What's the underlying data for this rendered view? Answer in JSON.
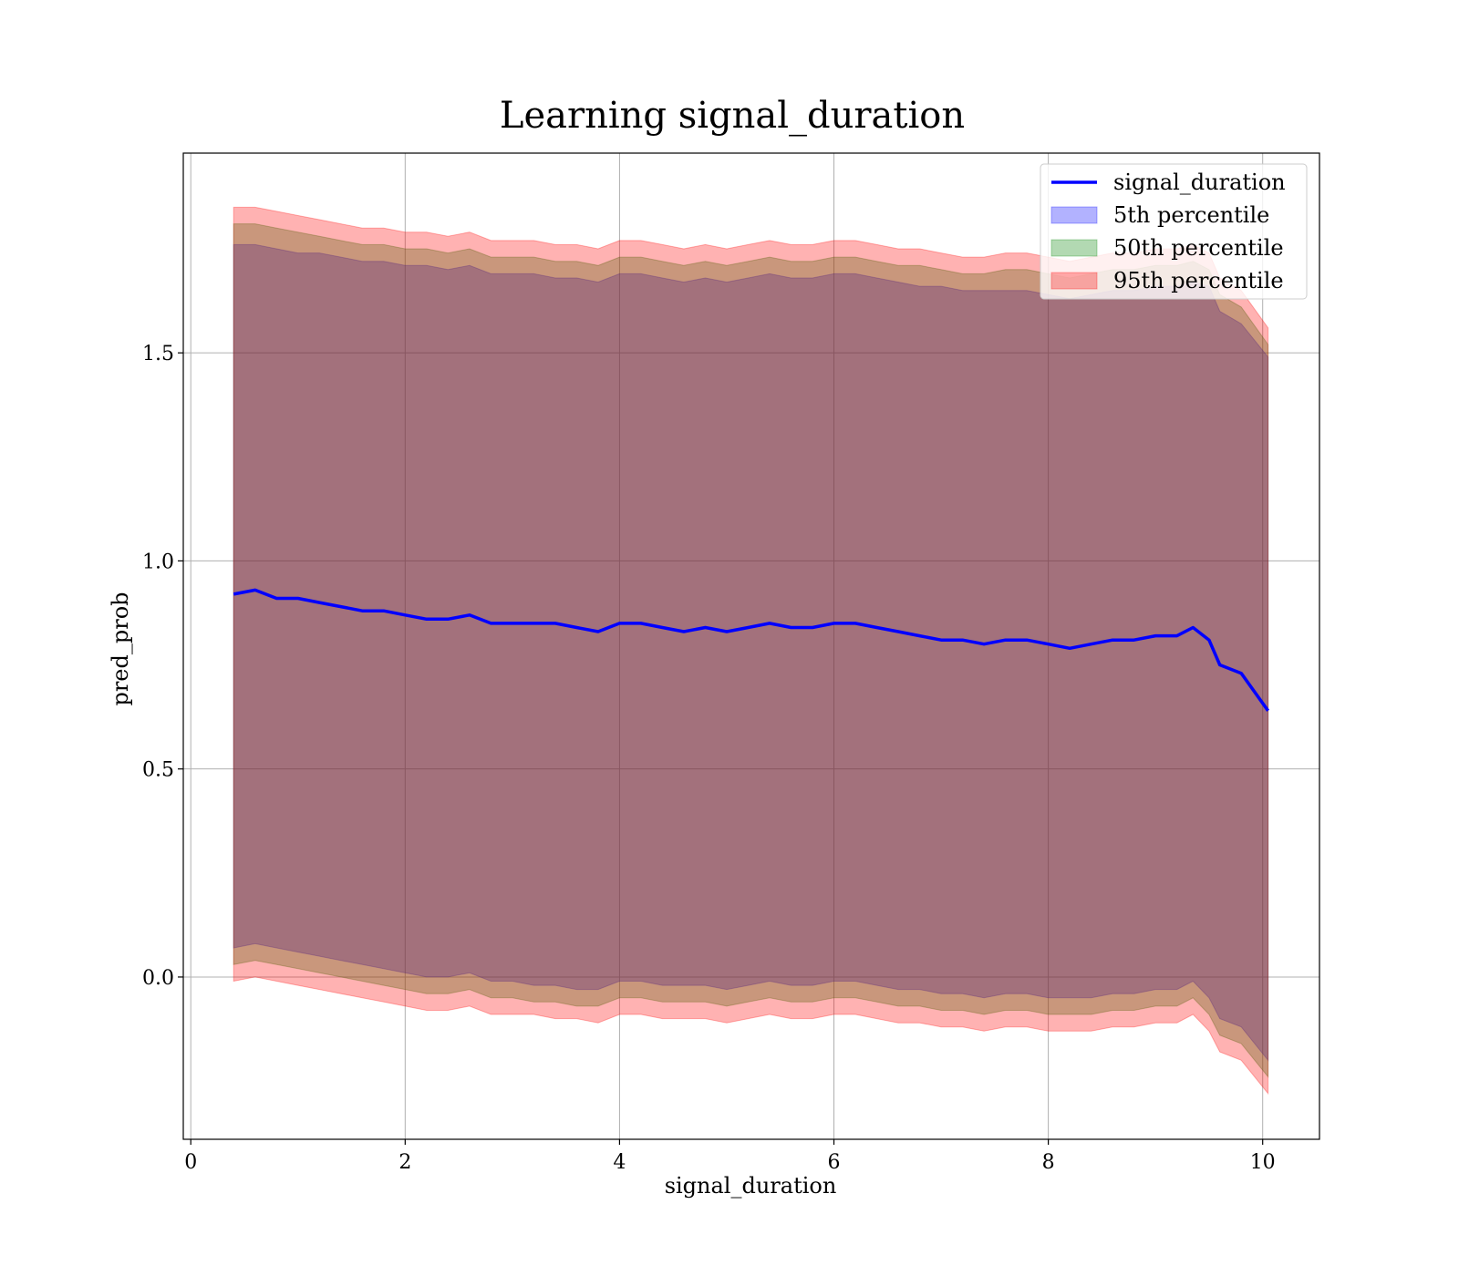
{
  "chart_data": {
    "type": "line",
    "title": "Learning signal_duration",
    "xlabel": "signal_duration",
    "ylabel": "pred_prob",
    "xlim": [
      -0.07,
      10.53
    ],
    "ylim": [
      -0.39,
      1.98
    ],
    "xticks": [
      0,
      2,
      4,
      6,
      8,
      10
    ],
    "xtick_labels": [
      "0",
      "2",
      "4",
      "6",
      "8",
      "10"
    ],
    "yticks": [
      0.0,
      0.5,
      1.0,
      1.5
    ],
    "ytick_labels": [
      "0.0",
      "0.5",
      "1.0",
      "1.5"
    ],
    "grid": true,
    "legend_position": "top-right",
    "x": [
      0.4,
      0.6,
      0.8,
      1.0,
      1.2,
      1.4,
      1.6,
      1.8,
      2.0,
      2.2,
      2.4,
      2.6,
      2.8,
      3.0,
      3.2,
      3.4,
      3.6,
      3.8,
      4.0,
      4.2,
      4.4,
      4.6,
      4.8,
      5.0,
      5.2,
      5.4,
      5.6,
      5.8,
      6.0,
      6.2,
      6.4,
      6.6,
      6.8,
      7.0,
      7.2,
      7.4,
      7.6,
      7.8,
      8.0,
      8.2,
      8.4,
      8.6,
      8.8,
      9.0,
      9.2,
      9.35,
      9.5,
      9.6,
      9.8,
      10.05
    ],
    "series": [
      {
        "name": "signal_duration",
        "kind": "line",
        "color": "#0000ff",
        "values": [
          0.92,
          0.93,
          0.91,
          0.91,
          0.9,
          0.89,
          0.88,
          0.88,
          0.87,
          0.86,
          0.86,
          0.87,
          0.85,
          0.85,
          0.85,
          0.85,
          0.84,
          0.83,
          0.85,
          0.85,
          0.84,
          0.83,
          0.84,
          0.83,
          0.84,
          0.85,
          0.84,
          0.84,
          0.85,
          0.85,
          0.84,
          0.83,
          0.82,
          0.81,
          0.81,
          0.8,
          0.81,
          0.81,
          0.8,
          0.79,
          0.8,
          0.81,
          0.81,
          0.82,
          0.82,
          0.84,
          0.81,
          0.75,
          0.73,
          0.64
        ]
      },
      {
        "name": "5th percentile",
        "kind": "band",
        "color": "#0000ff",
        "lower": [
          0.07,
          0.08,
          0.07,
          0.06,
          0.05,
          0.04,
          0.03,
          0.02,
          0.01,
          0.0,
          0.0,
          0.01,
          -0.01,
          -0.01,
          -0.02,
          -0.02,
          -0.03,
          -0.03,
          -0.01,
          -0.01,
          -0.02,
          -0.02,
          -0.02,
          -0.03,
          -0.02,
          -0.01,
          -0.02,
          -0.02,
          -0.01,
          -0.01,
          -0.02,
          -0.03,
          -0.03,
          -0.04,
          -0.04,
          -0.05,
          -0.04,
          -0.04,
          -0.05,
          -0.05,
          -0.05,
          -0.04,
          -0.04,
          -0.03,
          -0.03,
          -0.01,
          -0.05,
          -0.1,
          -0.12,
          -0.2
        ],
        "upper": [
          1.76,
          1.76,
          1.75,
          1.74,
          1.74,
          1.73,
          1.72,
          1.72,
          1.71,
          1.71,
          1.7,
          1.71,
          1.69,
          1.69,
          1.69,
          1.68,
          1.68,
          1.67,
          1.69,
          1.69,
          1.68,
          1.67,
          1.68,
          1.67,
          1.68,
          1.69,
          1.68,
          1.68,
          1.69,
          1.69,
          1.68,
          1.67,
          1.66,
          1.66,
          1.65,
          1.65,
          1.65,
          1.65,
          1.64,
          1.63,
          1.64,
          1.65,
          1.65,
          1.66,
          1.66,
          1.67,
          1.66,
          1.6,
          1.57,
          1.49
        ]
      },
      {
        "name": "50th percentile",
        "kind": "band",
        "color": "#008000",
        "lower": [
          0.03,
          0.04,
          0.03,
          0.02,
          0.01,
          0.0,
          -0.01,
          -0.02,
          -0.03,
          -0.04,
          -0.04,
          -0.03,
          -0.05,
          -0.05,
          -0.06,
          -0.06,
          -0.07,
          -0.07,
          -0.05,
          -0.05,
          -0.06,
          -0.06,
          -0.06,
          -0.07,
          -0.06,
          -0.05,
          -0.06,
          -0.06,
          -0.05,
          -0.05,
          -0.06,
          -0.07,
          -0.07,
          -0.08,
          -0.08,
          -0.09,
          -0.08,
          -0.08,
          -0.09,
          -0.09,
          -0.09,
          -0.08,
          -0.08,
          -0.07,
          -0.07,
          -0.05,
          -0.09,
          -0.14,
          -0.16,
          -0.24
        ],
        "upper": [
          1.81,
          1.81,
          1.8,
          1.79,
          1.78,
          1.77,
          1.76,
          1.76,
          1.75,
          1.75,
          1.74,
          1.75,
          1.73,
          1.73,
          1.73,
          1.72,
          1.72,
          1.71,
          1.73,
          1.73,
          1.72,
          1.71,
          1.72,
          1.71,
          1.72,
          1.73,
          1.72,
          1.72,
          1.73,
          1.73,
          1.72,
          1.71,
          1.71,
          1.7,
          1.69,
          1.69,
          1.7,
          1.7,
          1.69,
          1.68,
          1.69,
          1.7,
          1.7,
          1.71,
          1.71,
          1.72,
          1.7,
          1.64,
          1.61,
          1.52
        ]
      },
      {
        "name": "95th percentile",
        "kind": "band",
        "color": "#ff0000",
        "lower": [
          -0.01,
          0.0,
          -0.01,
          -0.02,
          -0.03,
          -0.04,
          -0.05,
          -0.06,
          -0.07,
          -0.08,
          -0.08,
          -0.07,
          -0.09,
          -0.09,
          -0.09,
          -0.1,
          -0.1,
          -0.11,
          -0.09,
          -0.09,
          -0.1,
          -0.1,
          -0.1,
          -0.11,
          -0.1,
          -0.09,
          -0.1,
          -0.1,
          -0.09,
          -0.09,
          -0.1,
          -0.11,
          -0.11,
          -0.12,
          -0.12,
          -0.13,
          -0.12,
          -0.12,
          -0.13,
          -0.13,
          -0.13,
          -0.12,
          -0.12,
          -0.11,
          -0.11,
          -0.09,
          -0.13,
          -0.18,
          -0.2,
          -0.28
        ],
        "upper": [
          1.85,
          1.85,
          1.84,
          1.83,
          1.82,
          1.81,
          1.8,
          1.8,
          1.79,
          1.79,
          1.78,
          1.79,
          1.77,
          1.77,
          1.77,
          1.76,
          1.76,
          1.75,
          1.77,
          1.77,
          1.76,
          1.75,
          1.76,
          1.75,
          1.76,
          1.77,
          1.76,
          1.76,
          1.77,
          1.77,
          1.76,
          1.75,
          1.75,
          1.74,
          1.73,
          1.73,
          1.74,
          1.74,
          1.73,
          1.72,
          1.73,
          1.74,
          1.74,
          1.75,
          1.75,
          1.76,
          1.74,
          1.68,
          1.65,
          1.56
        ]
      }
    ]
  }
}
